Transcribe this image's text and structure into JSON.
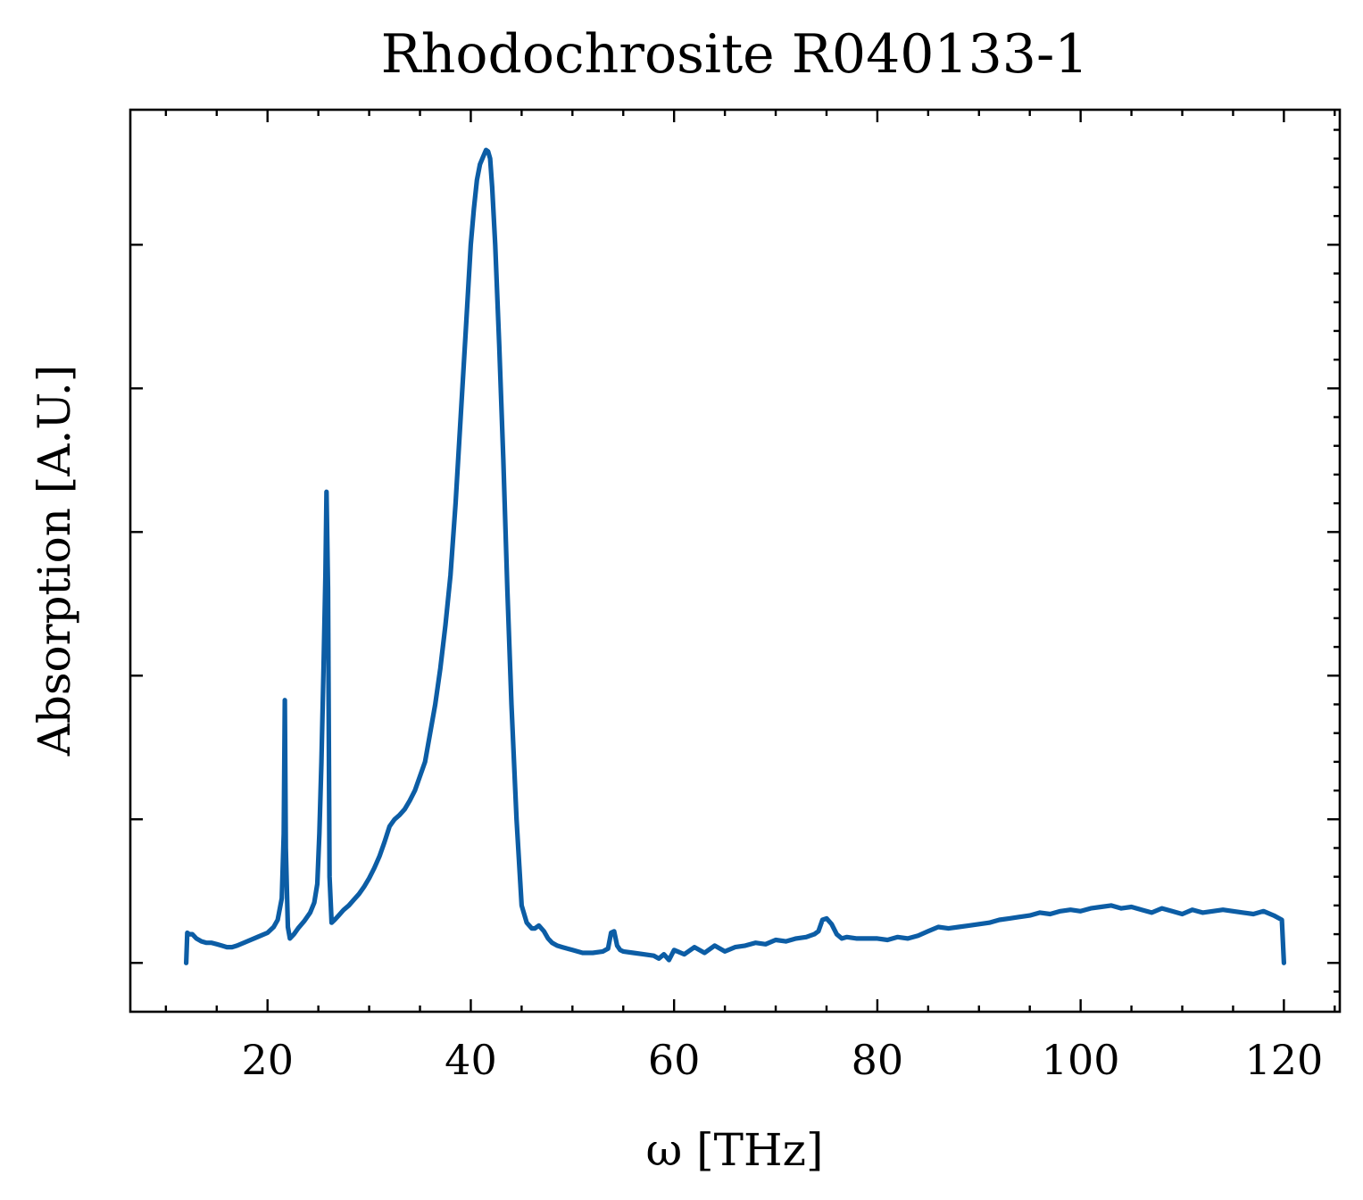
{
  "chart_data": {
    "type": "line",
    "title": "Rhodochrosite R040133-1",
    "xlabel": "ω [THz]",
    "ylabel": "Absorption [A.U.]",
    "xlim": [
      6.5,
      125.5
    ],
    "ylim": [
      -0.034,
      0.594
    ],
    "x_ticks": [
      20,
      40,
      60,
      80,
      100,
      120
    ],
    "y_ticks_unlabeled": [
      0,
      0.1,
      0.2,
      0.3,
      0.4,
      0.5
    ],
    "grid": false,
    "legend": "none",
    "series_color": "#0c5da5",
    "series": [
      {
        "x": [
          12.0,
          12.1,
          12.3,
          12.6,
          13.0,
          13.5,
          14.0,
          14.5,
          15.0,
          15.5,
          16.0,
          16.5,
          17.0,
          18.0,
          19.0,
          20.0,
          20.6,
          21.0,
          21.4,
          21.6,
          21.7,
          21.8,
          22.0,
          22.2,
          22.6,
          23.0,
          23.6,
          24.2,
          24.6,
          24.9,
          25.1,
          25.3,
          25.5,
          25.7,
          25.8,
          25.95,
          26.1,
          26.3,
          26.6,
          27.0,
          27.5,
          28.0,
          28.5,
          29.0,
          29.5,
          30.0,
          30.5,
          31.0,
          31.5,
          32.0,
          32.5,
          33.0,
          33.5,
          34.0,
          34.5,
          35.0,
          35.5,
          36.0,
          36.5,
          37.0,
          37.5,
          38.0,
          38.5,
          39.0,
          39.5,
          40.0,
          40.3,
          40.6,
          40.9,
          41.2,
          41.5,
          41.7,
          41.9,
          42.1,
          42.4,
          42.8,
          43.2,
          43.6,
          44.0,
          44.5,
          45.0,
          45.5,
          46.0,
          46.3,
          46.7,
          47.2,
          47.6,
          48.0,
          48.5,
          49.0,
          50.0,
          51.0,
          52.0,
          53.0,
          53.5,
          53.8,
          54.1,
          54.4,
          54.7,
          55.0,
          56.0,
          57.0,
          58.0,
          58.5,
          59.0,
          59.5,
          60.0,
          61.0,
          62.0,
          63.0,
          64.0,
          65.0,
          66.0,
          67.0,
          68.0,
          69.0,
          70.0,
          71.0,
          72.0,
          73.0,
          73.8,
          74.2,
          74.6,
          75.0,
          75.5,
          76.0,
          76.5,
          77.0,
          78.0,
          79.0,
          80.0,
          81.0,
          82.0,
          83.0,
          84.0,
          85.0,
          86.0,
          87.0,
          88.0,
          89.0,
          90.0,
          91.0,
          92.0,
          93.0,
          94.0,
          95.0,
          96.0,
          97.0,
          98.0,
          99.0,
          100.0,
          101.0,
          102.0,
          103.0,
          104.0,
          105.0,
          106.0,
          107.0,
          108.0,
          109.0,
          110.0,
          111.0,
          112.0,
          113.0,
          114.0,
          115.0,
          116.0,
          117.0,
          118.0,
          119.0,
          119.8,
          120.0
        ],
        "y": [
          0.0,
          0.021,
          0.02,
          0.02,
          0.017,
          0.015,
          0.014,
          0.014,
          0.013,
          0.012,
          0.011,
          0.011,
          0.012,
          0.015,
          0.018,
          0.021,
          0.025,
          0.03,
          0.045,
          0.09,
          0.183,
          0.08,
          0.025,
          0.017,
          0.02,
          0.024,
          0.029,
          0.035,
          0.042,
          0.055,
          0.09,
          0.14,
          0.2,
          0.27,
          0.328,
          0.26,
          0.06,
          0.028,
          0.03,
          0.033,
          0.037,
          0.04,
          0.044,
          0.048,
          0.053,
          0.059,
          0.066,
          0.074,
          0.084,
          0.095,
          0.1,
          0.103,
          0.107,
          0.113,
          0.12,
          0.13,
          0.14,
          0.16,
          0.18,
          0.205,
          0.235,
          0.27,
          0.32,
          0.38,
          0.44,
          0.5,
          0.525,
          0.545,
          0.556,
          0.561,
          0.566,
          0.565,
          0.56,
          0.54,
          0.5,
          0.43,
          0.35,
          0.26,
          0.18,
          0.1,
          0.04,
          0.028,
          0.024,
          0.024,
          0.026,
          0.022,
          0.017,
          0.014,
          0.012,
          0.011,
          0.009,
          0.007,
          0.007,
          0.008,
          0.01,
          0.021,
          0.022,
          0.012,
          0.009,
          0.008,
          0.007,
          0.006,
          0.005,
          0.003,
          0.006,
          0.002,
          0.009,
          0.006,
          0.011,
          0.007,
          0.012,
          0.008,
          0.011,
          0.012,
          0.014,
          0.013,
          0.016,
          0.015,
          0.017,
          0.018,
          0.02,
          0.022,
          0.03,
          0.031,
          0.027,
          0.02,
          0.017,
          0.018,
          0.017,
          0.017,
          0.017,
          0.016,
          0.018,
          0.017,
          0.019,
          0.022,
          0.025,
          0.024,
          0.025,
          0.026,
          0.027,
          0.028,
          0.03,
          0.031,
          0.032,
          0.033,
          0.035,
          0.034,
          0.036,
          0.037,
          0.036,
          0.038,
          0.039,
          0.04,
          0.038,
          0.039,
          0.037,
          0.035,
          0.038,
          0.036,
          0.034,
          0.037,
          0.035,
          0.036,
          0.037,
          0.036,
          0.035,
          0.034,
          0.036,
          0.033,
          0.03,
          0.0
        ]
      }
    ]
  }
}
